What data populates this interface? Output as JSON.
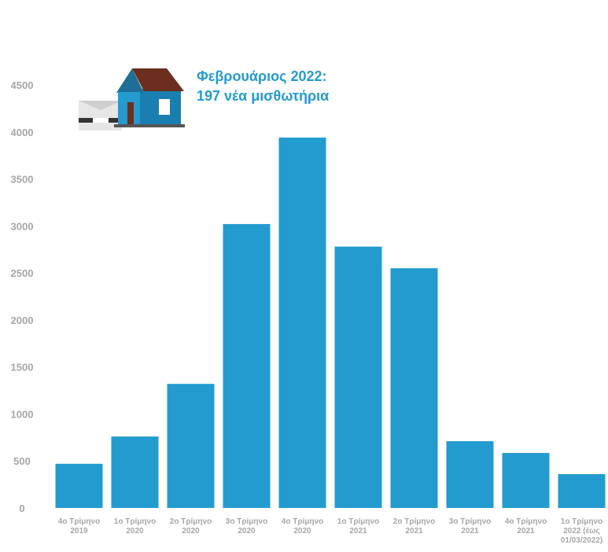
{
  "chart_data": {
    "type": "bar",
    "annotation": [
      "Φεβρουάριος 2022:",
      "197 νέα μισθωτήρια"
    ],
    "categories": [
      "4ο Τρίμηνο\n2019",
      "1ο Τρίμηνο\n2020",
      "2ο Τρίμηνο\n2020",
      "3ο Τρίμηνο\n2020",
      "4ο Τρίμηνο\n2020",
      "1ο Τρίμηνο\n2021",
      "2ο Τρίμηνο\n2021",
      "3ο Τρίμηνο\n2021",
      "4ο Τρίμηνο\n2021",
      "1ο Τρίμηνο\n2022 (έως\n01/03/2022)"
    ],
    "values": [
      470,
      760,
      1320,
      3020,
      3940,
      2780,
      2550,
      710,
      585,
      360
    ],
    "color": "#239bce",
    "ylim": [
      0,
      4500
    ],
    "yticks": [
      0,
      500,
      1000,
      1500,
      2000,
      2500,
      3000,
      3500,
      4000,
      4500
    ],
    "grid": false
  }
}
